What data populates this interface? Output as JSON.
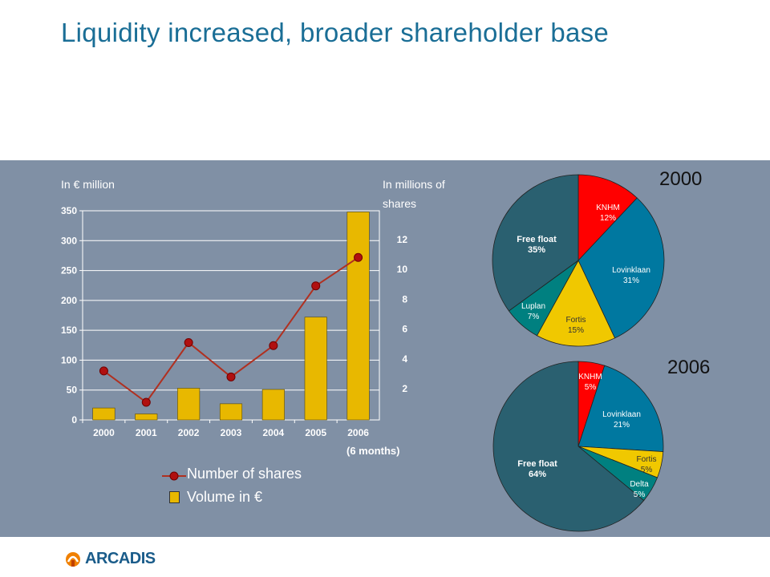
{
  "title": "Liquidity increased, broader shareholder base",
  "left_axis_label": "In € million",
  "right_axis_label_line1": "In millions of",
  "right_axis_label_line2": "shares",
  "x_note": "(6 months)",
  "legend": {
    "line": "Number of shares",
    "bar": "Volume in €"
  },
  "logo": "ARCADIS",
  "colors": {
    "band": "#8090a5",
    "title": "#1a6e96",
    "bar": "#e8b800",
    "line": "#b03020",
    "pie_red": "#ff0000",
    "pie_blue": "#0078a0",
    "pie_yellow": "#f0c800",
    "pie_teal": "#008080",
    "pie_slate": "#2a6070"
  },
  "chart_data": [
    {
      "type": "bar",
      "categories": [
        "2000",
        "2001",
        "2002",
        "2003",
        "2004",
        "2005",
        "2006"
      ],
      "left_ticks": [
        "0",
        "50",
        "100",
        "150",
        "200",
        "250",
        "300",
        "350"
      ],
      "right_ticks": [
        "2",
        "4",
        "6",
        "8",
        "10",
        "12"
      ],
      "ylim": [
        0,
        350
      ],
      "series": [
        {
          "name": "Volume in €",
          "type": "bar",
          "values": [
            20,
            10,
            53,
            27,
            51,
            172,
            348
          ]
        },
        {
          "name": "Number of shares",
          "type": "line",
          "values": [
            3.2,
            1.1,
            5.1,
            2.8,
            4.9,
            8.9,
            10.8
          ]
        }
      ]
    },
    {
      "type": "pie",
      "title": "2000",
      "slices": [
        {
          "label": "KNHM",
          "pct_label": "12%",
          "value": 12,
          "color": "#ff0000"
        },
        {
          "label": "Lovinklaan",
          "pct_label": "31%",
          "value": 31,
          "color": "#0078a0"
        },
        {
          "label": "Fortis",
          "pct_label": "15%",
          "value": 15,
          "color": "#f0c800"
        },
        {
          "label": "Luplan",
          "pct_label": "7%",
          "value": 7,
          "color": "#008080"
        },
        {
          "label": "Free float",
          "pct_label": "35%",
          "value": 35,
          "color": "#2a6070"
        }
      ]
    },
    {
      "type": "pie",
      "title": "2006",
      "slices": [
        {
          "label": "KNHM",
          "pct_label": "5%",
          "value": 5,
          "color": "#ff0000"
        },
        {
          "label": "Lovinklaan",
          "pct_label": "21%",
          "value": 21,
          "color": "#0078a0"
        },
        {
          "label": "Fortis",
          "pct_label": "5%",
          "value": 5,
          "color": "#f0c800"
        },
        {
          "label": "Delta",
          "pct_label": "5%",
          "value": 5,
          "color": "#008080"
        },
        {
          "label": "Free float",
          "pct_label": "64%",
          "value": 64,
          "color": "#2a6070"
        }
      ]
    }
  ]
}
